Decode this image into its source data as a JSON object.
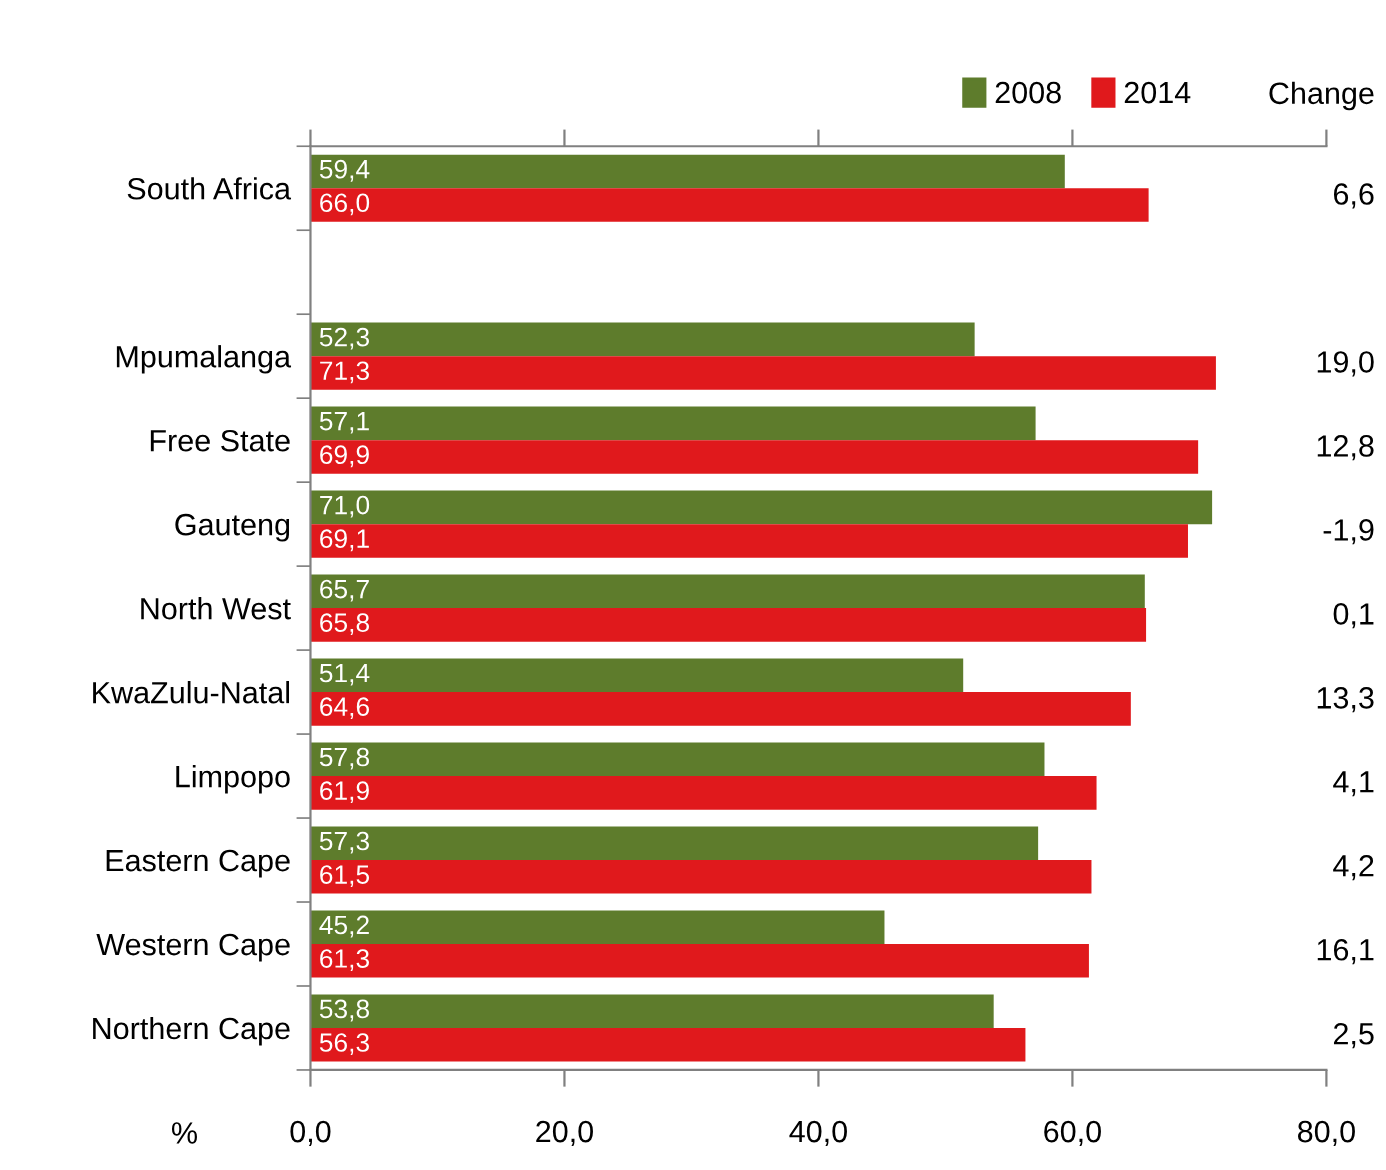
{
  "chart_data": {
    "type": "bar",
    "orientation": "horizontal",
    "categories": [
      "South Africa",
      null,
      "Mpumalanga",
      "Free State",
      "Gauteng",
      "North West",
      "KwaZulu-Natal",
      "Limpopo",
      "Eastern Cape",
      "Western Cape",
      "Northern Cape"
    ],
    "series": [
      {
        "name": "2008",
        "color": "#5e7c2c",
        "values": [
          59.4,
          null,
          52.3,
          57.1,
          71.0,
          65.7,
          51.4,
          57.8,
          57.3,
          45.2,
          53.8
        ],
        "value_labels": [
          "59,4",
          null,
          "52,3",
          "57,1",
          "71,0",
          "65,7",
          "51,4",
          "57,8",
          "57,3",
          "45,2",
          "53,8"
        ]
      },
      {
        "name": "2014",
        "color": "#e0191c",
        "values": [
          66.0,
          null,
          71.3,
          69.9,
          69.1,
          65.8,
          64.6,
          61.9,
          61.5,
          61.3,
          56.3
        ],
        "value_labels": [
          "66,0",
          null,
          "71,3",
          "69,9",
          "69,1",
          "65,8",
          "64,6",
          "61,9",
          "61,5",
          "61,3",
          "56,3"
        ]
      }
    ],
    "xlabel": "%",
    "xlim": [
      0,
      80
    ],
    "xticks": [
      {
        "value": 0,
        "label": "0,0"
      },
      {
        "value": 20,
        "label": "20,0"
      },
      {
        "value": 40,
        "label": "40,0"
      },
      {
        "value": 60,
        "label": "60,0"
      },
      {
        "value": 80,
        "label": "80,0"
      }
    ],
    "legend": "top right",
    "annotations": [
      "Change",
      "6,6",
      "19,0",
      "12,8",
      "-1,9",
      "0,1",
      "13,3",
      "4,1",
      "4,2",
      "16,1",
      "2,5"
    ]
  }
}
